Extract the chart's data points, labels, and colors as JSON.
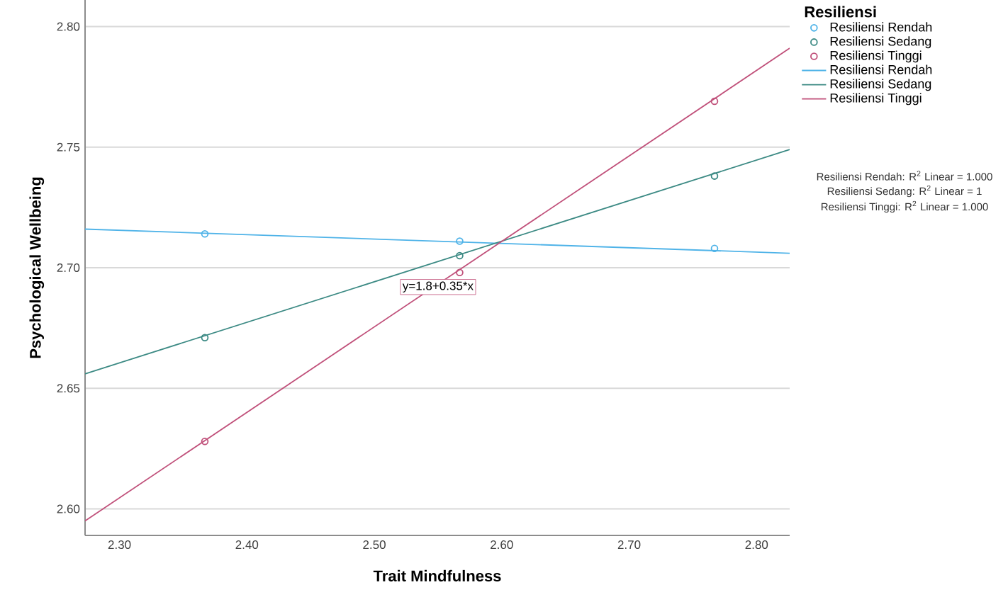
{
  "chart_data": {
    "type": "scatter",
    "xlabel": "Trait Mindfulness",
    "ylabel": "Psychological Wellbeing",
    "legend_title": "Resiliensi",
    "xlim": [
      2.273,
      2.826
    ],
    "ylim": [
      2.589,
      2.811
    ],
    "xticks": [
      {
        "value": 2.3,
        "label": "2.30"
      },
      {
        "value": 2.4,
        "label": "2.40"
      },
      {
        "value": 2.5,
        "label": "2.50"
      },
      {
        "value": 2.6,
        "label": "2.60"
      },
      {
        "value": 2.7,
        "label": "2.70"
      },
      {
        "value": 2.8,
        "label": "2.80"
      }
    ],
    "yticks": [
      {
        "value": 2.6,
        "label": "2.60"
      },
      2.65,
      {
        "value": 2.7,
        "label": "2.70"
      },
      2.75,
      {
        "value": 2.8,
        "label": "2.80"
      }
    ],
    "grid": "y",
    "legend": "right",
    "series": [
      {
        "name": "Resiliensi Rendah",
        "marker": "circle",
        "color": "#4fb3e8",
        "x": [
          2.367,
          2.567,
          2.767
        ],
        "values": [
          2.714,
          2.711,
          2.708
        ]
      },
      {
        "name": "Resiliensi Sedang",
        "marker": "circle",
        "color": "#3c8a84",
        "x": [
          2.367,
          2.567,
          2.767
        ],
        "values": [
          2.671,
          2.705,
          2.738
        ]
      },
      {
        "name": "Resiliensi Tinggi",
        "marker": "circle",
        "color": "#c0507a",
        "x": [
          2.367,
          2.567,
          2.767
        ],
        "values": [
          2.628,
          2.698,
          2.769
        ]
      },
      {
        "name": "Resiliensi Rendah",
        "type": "line",
        "marker": "none",
        "color": "#4fb3e8",
        "x": [
          2.273,
          2.826
        ],
        "values": [
          2.716,
          2.706
        ]
      },
      {
        "name": "Resiliensi Sedang",
        "type": "line",
        "marker": "none",
        "color": "#3c8a84",
        "x": [
          2.273,
          2.826
        ],
        "values": [
          2.656,
          2.749
        ]
      },
      {
        "name": "Resiliensi Tinggi",
        "type": "line",
        "marker": "none",
        "color": "#c0507a",
        "x": [
          2.273,
          2.826
        ],
        "values": [
          2.595,
          2.791
        ]
      }
    ],
    "annotations": [
      {
        "text": "y=1.8+0.35*x",
        "x": 2.55,
        "y": 2.692
      },
      "Resiliensi Rendah: R$^{2}$ Linear = 1.000",
      "Resiliensi Sedang: R$^{2}$ Linear = 1",
      "Resiliensi Tinggi: R$^{2}$ Linear = 1.000"
    ]
  }
}
